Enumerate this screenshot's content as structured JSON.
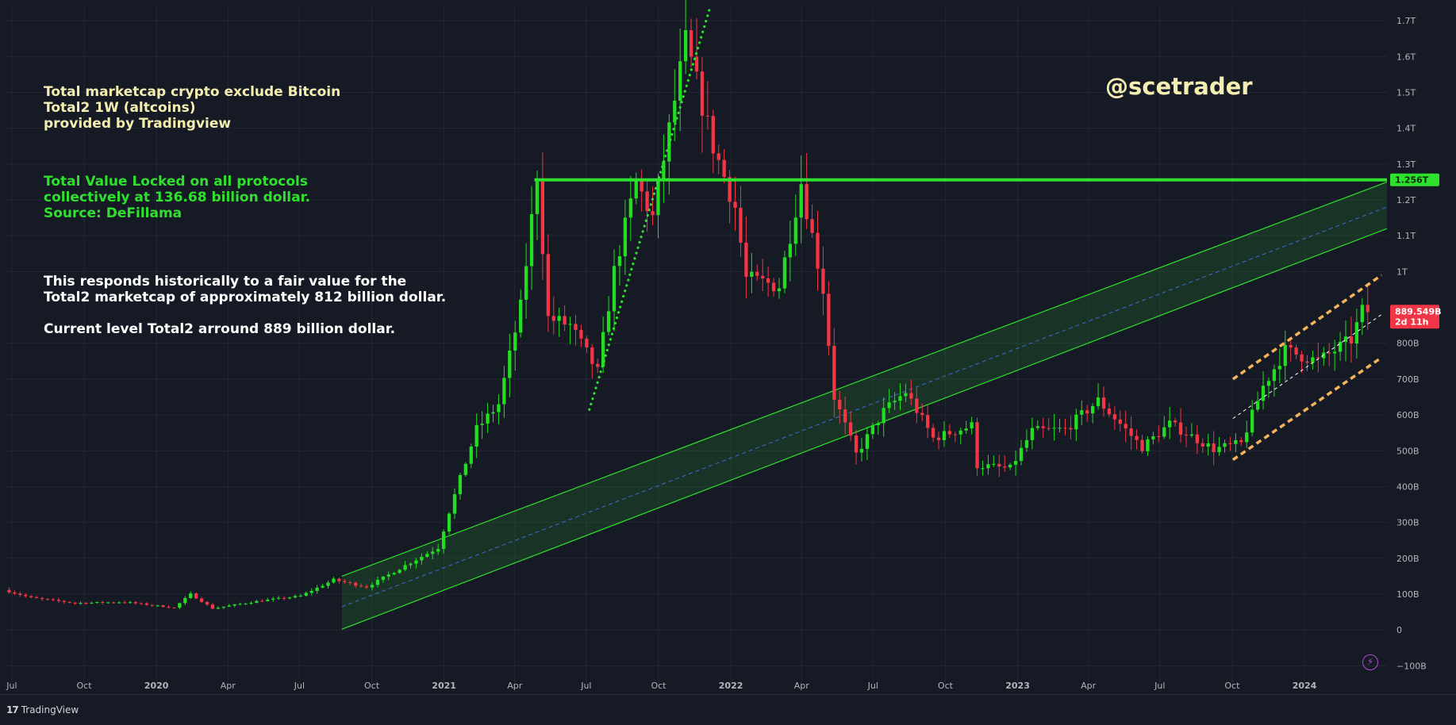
{
  "annotations": {
    "title": "Total marketcap crypto exclude Bitcoin\nTotal2 1W (altcoins)\nprovided by Tradingview",
    "tvl": "Total Value Locked on all protocols\ncollectively at 136.68 billion dollar.\nSource: DeFillama",
    "fair_value": "This responds historically to a fair value for the\nTotal2 marketcap of approximately 812 billion dollar.",
    "current": "Current level Total2 arround 889 billion dollar."
  },
  "watermark": "@scetrader",
  "footer": {
    "brand": "TradingView",
    "brand_icon": "17"
  },
  "colors": {
    "background": "#161a25",
    "up": "#22dd22",
    "down": "#f23645",
    "resistance": "#2fe02f",
    "channel": "#2fe02f",
    "channel_fill": "rgba(47,224,47,0.13)",
    "channel_mid": "#3a6cd8",
    "trend_dotted": "#2fe02f",
    "rising_channel": "#f5b35a",
    "grid": "#232733"
  },
  "chart_data": {
    "type": "candlestick",
    "symbol": "Total2",
    "interval": "1W",
    "x_axis": {
      "ticks": [
        {
          "label": "Jul",
          "date": "2019-07-01"
        },
        {
          "label": "Oct",
          "date": "2019-10-01"
        },
        {
          "label": "2020",
          "date": "2020-01-01"
        },
        {
          "label": "Apr",
          "date": "2020-04-01"
        },
        {
          "label": "Jul",
          "date": "2020-07-01"
        },
        {
          "label": "Oct",
          "date": "2020-10-01"
        },
        {
          "label": "2021",
          "date": "2021-01-01"
        },
        {
          "label": "Apr",
          "date": "2021-04-01"
        },
        {
          "label": "Jul",
          "date": "2021-07-01"
        },
        {
          "label": "Oct",
          "date": "2021-10-01"
        },
        {
          "label": "2022",
          "date": "2022-01-01"
        },
        {
          "label": "Apr",
          "date": "2022-04-01"
        },
        {
          "label": "Jul",
          "date": "2022-07-01"
        },
        {
          "label": "Oct",
          "date": "2022-10-01"
        },
        {
          "label": "2023",
          "date": "2023-01-01"
        },
        {
          "label": "Apr",
          "date": "2023-04-01"
        },
        {
          "label": "Jul",
          "date": "2023-07-01"
        },
        {
          "label": "Oct",
          "date": "2023-10-01"
        },
        {
          "label": "2024",
          "date": "2024-01-01"
        }
      ],
      "range": [
        "2019-06-24",
        "2024-04-15"
      ]
    },
    "y_axis": {
      "unit": "B",
      "range": [
        -150,
        1740
      ],
      "ticks": [
        {
          "value": -100,
          "label": "−100B"
        },
        {
          "value": 0,
          "label": "0"
        },
        {
          "value": 100,
          "label": "100B"
        },
        {
          "value": 200,
          "label": "200B"
        },
        {
          "value": 300,
          "label": "300B"
        },
        {
          "value": 400,
          "label": "400B"
        },
        {
          "value": 500,
          "label": "500B"
        },
        {
          "value": 600,
          "label": "600B"
        },
        {
          "value": 700,
          "label": "700B"
        },
        {
          "value": 800,
          "label": "800B"
        },
        {
          "value": 1000,
          "label": "1T"
        },
        {
          "value": 1100,
          "label": "1.1T"
        },
        {
          "value": 1200,
          "label": "1.2T"
        },
        {
          "value": 1300,
          "label": "1.3T"
        },
        {
          "value": 1400,
          "label": "1.4T"
        },
        {
          "value": 1500,
          "label": "1.5T"
        },
        {
          "value": 1600,
          "label": "1.6T"
        },
        {
          "value": 1700,
          "label": "1.7T"
        }
      ]
    },
    "price_labels": [
      {
        "value": 1256,
        "text": "1.256T",
        "kind": "resistance"
      },
      {
        "value": 889.549,
        "text": "889.549B",
        "subtext": "2d 11h",
        "kind": "last"
      }
    ],
    "resistance": {
      "value": 1256,
      "start": "2021-04-26",
      "end": "2024-04-15"
    },
    "channel": {
      "start": "2020-08-24",
      "end": "2024-04-15",
      "upper": [
        150,
        1250
      ],
      "middle": [
        65,
        1180
      ],
      "lower": [
        2,
        1120
      ]
    },
    "dotted_trend": {
      "start": [
        "2021-07-05",
        615
      ],
      "end": [
        "2021-12-06",
        1740
      ]
    },
    "rising_channel": {
      "start": "2023-10-02",
      "end": "2024-04-08",
      "upper": [
        700,
        990
      ],
      "middle": [
        590,
        880
      ],
      "lower": [
        475,
        760
      ]
    },
    "anchors": [
      {
        "date": "2019-06-24",
        "value": 112
      },
      {
        "date": "2019-07-29",
        "value": 90
      },
      {
        "date": "2019-09-23",
        "value": 75
      },
      {
        "date": "2019-11-25",
        "value": 78
      },
      {
        "date": "2020-01-27",
        "value": 62
      },
      {
        "date": "2020-02-17",
        "value": 100
      },
      {
        "date": "2020-03-16",
        "value": 60
      },
      {
        "date": "2020-05-11",
        "value": 80
      },
      {
        "date": "2020-07-06",
        "value": 95
      },
      {
        "date": "2020-08-17",
        "value": 140
      },
      {
        "date": "2020-09-28",
        "value": 120
      },
      {
        "date": "2020-11-16",
        "value": 180
      },
      {
        "date": "2020-12-28",
        "value": 230
      },
      {
        "date": "2021-01-11",
        "value": 330
      },
      {
        "date": "2021-02-15",
        "value": 560
      },
      {
        "date": "2021-03-15",
        "value": 630
      },
      {
        "date": "2021-04-12",
        "value": 900
      },
      {
        "date": "2021-05-03",
        "value": 1270
      },
      {
        "date": "2021-05-17",
        "value": 870
      },
      {
        "date": "2021-06-14",
        "value": 850
      },
      {
        "date": "2021-07-19",
        "value": 720
      },
      {
        "date": "2021-08-09",
        "value": 1000
      },
      {
        "date": "2021-09-06",
        "value": 1250
      },
      {
        "date": "2021-09-27",
        "value": 1150
      },
      {
        "date": "2021-11-08",
        "value": 1640
      },
      {
        "date": "2021-12-13",
        "value": 1350
      },
      {
        "date": "2022-01-10",
        "value": 1180
      },
      {
        "date": "2022-01-24",
        "value": 980
      },
      {
        "date": "2022-03-07",
        "value": 960
      },
      {
        "date": "2022-04-04",
        "value": 1250
      },
      {
        "date": "2022-05-02",
        "value": 950
      },
      {
        "date": "2022-05-16",
        "value": 650
      },
      {
        "date": "2022-06-13",
        "value": 490
      },
      {
        "date": "2022-07-18",
        "value": 610
      },
      {
        "date": "2022-08-15",
        "value": 665
      },
      {
        "date": "2022-09-19",
        "value": 535
      },
      {
        "date": "2022-11-07",
        "value": 570
      },
      {
        "date": "2022-11-14",
        "value": 460
      },
      {
        "date": "2022-12-26",
        "value": 450
      },
      {
        "date": "2023-01-23",
        "value": 555
      },
      {
        "date": "2023-03-06",
        "value": 560
      },
      {
        "date": "2023-04-17",
        "value": 640
      },
      {
        "date": "2023-06-12",
        "value": 510
      },
      {
        "date": "2023-07-17",
        "value": 575
      },
      {
        "date": "2023-09-11",
        "value": 505
      },
      {
        "date": "2023-10-16",
        "value": 520
      },
      {
        "date": "2023-11-13",
        "value": 680
      },
      {
        "date": "2023-12-11",
        "value": 780
      },
      {
        "date": "2024-01-22",
        "value": 750
      },
      {
        "date": "2024-03-04",
        "value": 810
      },
      {
        "date": "2024-03-18",
        "value": 889.549
      }
    ]
  }
}
